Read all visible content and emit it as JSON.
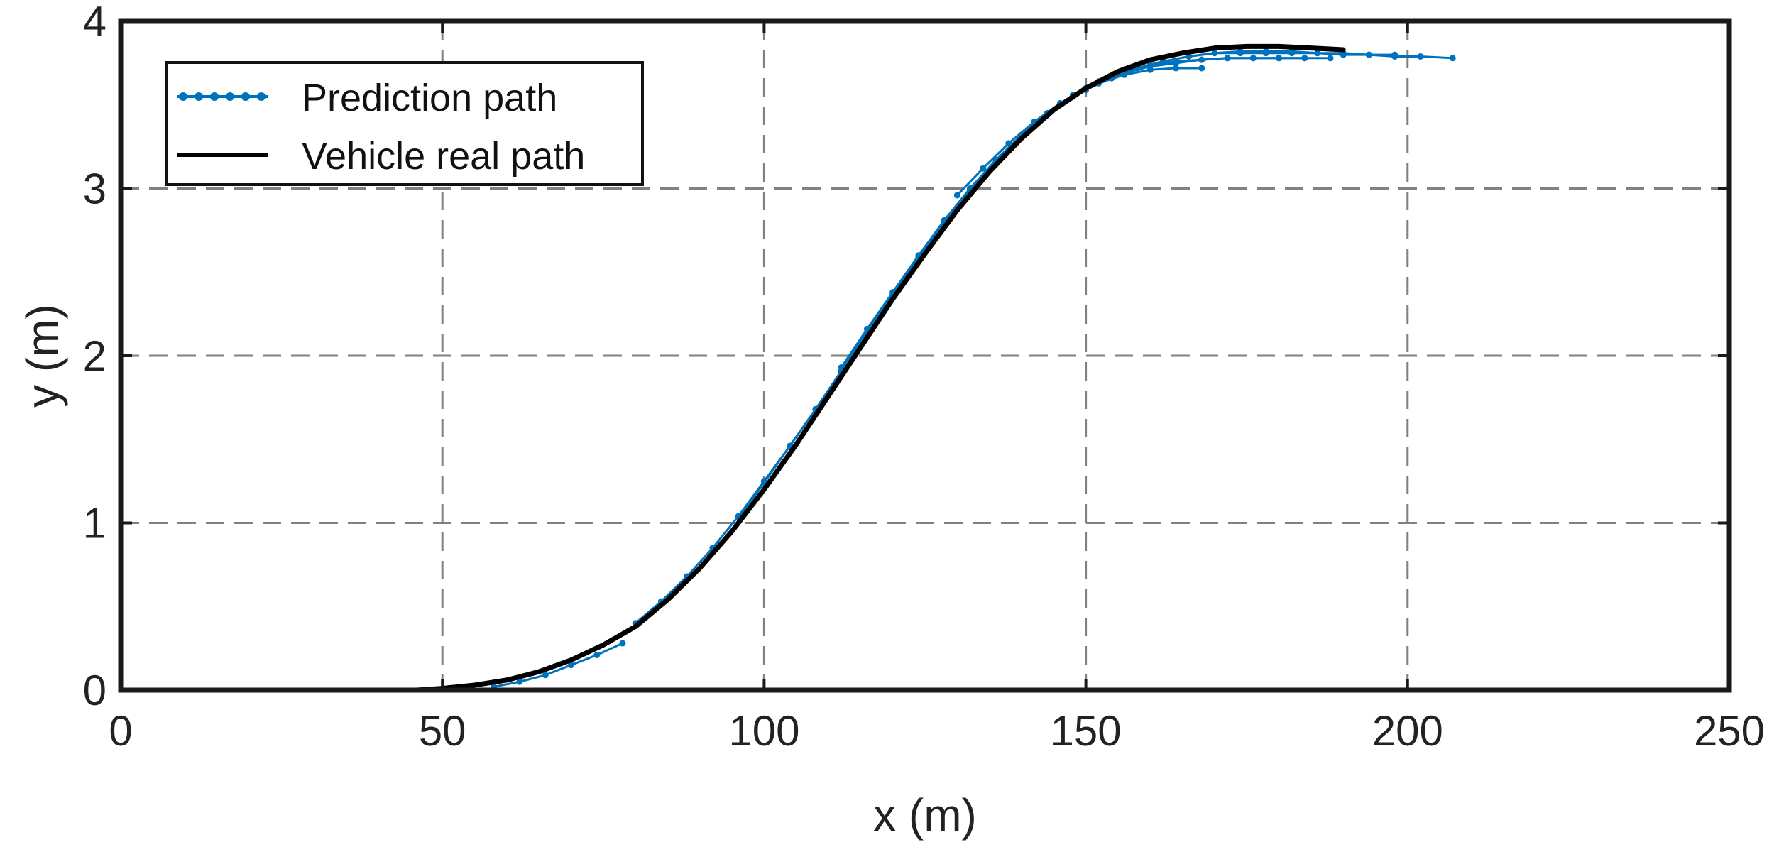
{
  "chart_data": {
    "type": "line",
    "xlabel": "x (m)",
    "ylabel": "y (m)",
    "xlim": [
      0,
      250
    ],
    "ylim": [
      0,
      4
    ],
    "x_ticks": [
      "0",
      "50",
      "100",
      "150",
      "200",
      "250"
    ],
    "y_ticks": [
      "0",
      "1",
      "2",
      "3",
      "4"
    ],
    "grid": true,
    "legend_position": "top-left",
    "series": [
      {
        "name": "Prediction path",
        "color": "#0072BD",
        "marker": "dot",
        "segments": [
          {
            "x": [
              58,
              62,
              66,
              70,
              74,
              78
            ],
            "y": [
              0.02,
              0.05,
              0.09,
              0.15,
              0.21,
              0.28
            ]
          },
          {
            "x": [
              80,
              84,
              88,
              92,
              96,
              100,
              104,
              108,
              112,
              116,
              120,
              124,
              128,
              132,
              136,
              140,
              144,
              148,
              152,
              156,
              160,
              164,
              168
            ],
            "y": [
              0.4,
              0.53,
              0.68,
              0.85,
              1.04,
              1.25,
              1.46,
              1.68,
              1.91,
              2.14,
              2.37,
              2.59,
              2.81,
              3.0,
              3.17,
              3.32,
              3.45,
              3.55,
              3.63,
              3.68,
              3.71,
              3.72,
              3.72
            ]
          },
          {
            "x": [
              96,
              100,
              104,
              108,
              112,
              116,
              120,
              124,
              128,
              132,
              136,
              140,
              144,
              148,
              152,
              156,
              160,
              164,
              168,
              172,
              176,
              180,
              184
            ],
            "y": [
              1.03,
              1.24,
              1.46,
              1.68,
              1.9,
              2.13,
              2.36,
              2.58,
              2.79,
              2.98,
              3.15,
              3.31,
              3.44,
              3.55,
              3.63,
              3.69,
              3.73,
              3.75,
              3.77,
              3.78,
              3.78,
              3.78,
              3.78
            ]
          },
          {
            "x": [
              112,
              116,
              120,
              124,
              128,
              132,
              136,
              140,
              144,
              148,
              152,
              156,
              160,
              164,
              168,
              172,
              176,
              180,
              184,
              188
            ],
            "y": [
              1.93,
              2.16,
              2.38,
              2.6,
              2.81,
              3.0,
              3.17,
              3.32,
              3.45,
              3.56,
              3.64,
              3.7,
              3.74,
              3.76,
              3.77,
              3.78,
              3.78,
              3.78,
              3.78,
              3.78
            ]
          },
          {
            "x": [
              130,
              134,
              138,
              142,
              146,
              150,
              154,
              158,
              162,
              166,
              170,
              174,
              178,
              182,
              186,
              190,
              194,
              198
            ],
            "y": [
              2.96,
              3.12,
              3.27,
              3.4,
              3.51,
              3.6,
              3.67,
              3.72,
              3.76,
              3.79,
              3.81,
              3.81,
              3.81,
              3.81,
              3.81,
              3.8,
              3.8,
              3.8
            ]
          },
          {
            "x": [
              150,
              154,
              158,
              162,
              166,
              170,
              174,
              178,
              182,
              186,
              190,
              194,
              198,
              202,
              207
            ],
            "y": [
              3.59,
              3.66,
              3.72,
              3.76,
              3.79,
              3.81,
              3.82,
              3.82,
              3.82,
              3.81,
              3.81,
              3.8,
              3.79,
              3.79,
              3.78
            ]
          }
        ]
      },
      {
        "name": "Vehicle real path",
        "color": "#000000",
        "x": [
          46,
          50,
          55,
          60,
          65,
          70,
          75,
          80,
          85,
          90,
          95,
          100,
          105,
          110,
          115,
          120,
          125,
          130,
          135,
          140,
          145,
          150,
          155,
          160,
          165,
          170,
          175,
          180,
          185,
          190
        ],
        "y": [
          0.0,
          0.01,
          0.03,
          0.06,
          0.11,
          0.18,
          0.27,
          0.38,
          0.54,
          0.73,
          0.95,
          1.2,
          1.47,
          1.76,
          2.05,
          2.34,
          2.61,
          2.87,
          3.1,
          3.3,
          3.47,
          3.6,
          3.7,
          3.77,
          3.81,
          3.84,
          3.85,
          3.85,
          3.84,
          3.83
        ]
      }
    ]
  }
}
